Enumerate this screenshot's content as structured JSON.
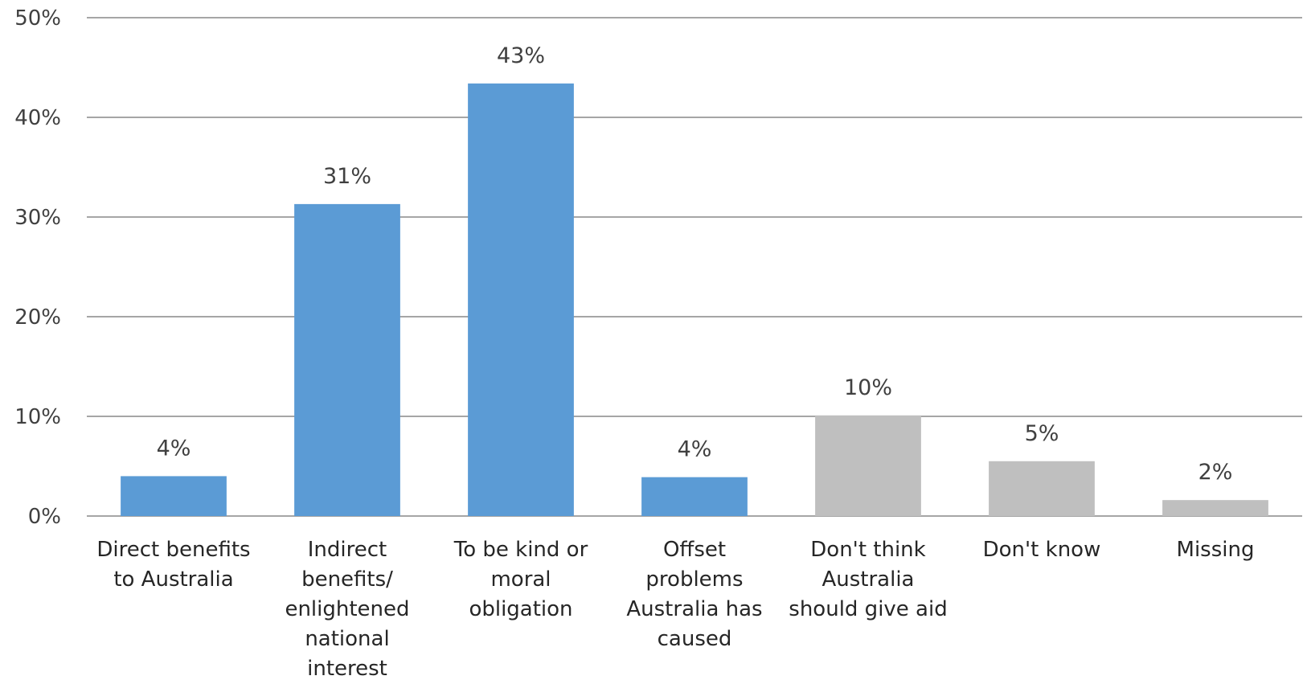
{
  "chart_data": {
    "type": "bar",
    "title": "",
    "xlabel": "",
    "ylabel": "",
    "ylim": [
      0,
      50
    ],
    "yticks": [
      "0%",
      "10%",
      "20%",
      "30%",
      "40%",
      "50%"
    ],
    "ytick_values": [
      0,
      10,
      20,
      30,
      40,
      50
    ],
    "grid": true,
    "legend": "none",
    "categories": [
      [
        "Direct benefits",
        "to Australia"
      ],
      [
        "Indirect",
        "benefits/",
        "enlightened",
        "national",
        "interest"
      ],
      [
        "To be kind or",
        "moral",
        "obligation"
      ],
      [
        "Offset",
        "problems",
        "Australia has",
        "caused"
      ],
      [
        "Don't think",
        "Australia",
        "should give aid"
      ],
      [
        "Don't know"
      ],
      [
        "Missing"
      ]
    ],
    "values": [
      4,
      31.3,
      43.4,
      3.9,
      10.1,
      5.5,
      1.6
    ],
    "data_labels": [
      "4%",
      "31%",
      "43%",
      "4%",
      "10%",
      "5%",
      "2%"
    ],
    "colors": [
      "#5b9bd5",
      "#5b9bd5",
      "#5b9bd5",
      "#5b9bd5",
      "#bfbfbf",
      "#bfbfbf",
      "#bfbfbf"
    ]
  }
}
